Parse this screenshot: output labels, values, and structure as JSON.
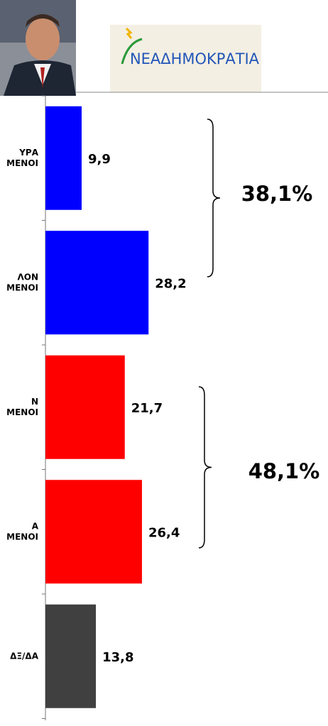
{
  "chart_data": {
    "type": "barh",
    "logo_text": "ΝΕΑΔΗΜΟΚΡΑΤΙΑ",
    "categories": [
      [
        "ΥΡΑ",
        "ΜΕΝΟΙ"
      ],
      [
        "ΛΟΝ",
        "ΜΕΝΟΙ"
      ],
      [
        "Ν",
        "ΜΕΝΟΙ"
      ],
      [
        "Α",
        "ΜΕΝΟΙ"
      ],
      [
        "ΔΞ/ΔΑ"
      ]
    ],
    "values": [
      9.9,
      28.2,
      21.7,
      26.4,
      13.8
    ],
    "value_labels": [
      "9,9",
      "28,2",
      "21,7",
      "26,4",
      "13,8"
    ],
    "colors": [
      "#0000ff",
      "#0000ff",
      "#ff0000",
      "#ff0000",
      "#404040"
    ],
    "annotations": [
      "38,1%",
      "48,1%"
    ]
  }
}
